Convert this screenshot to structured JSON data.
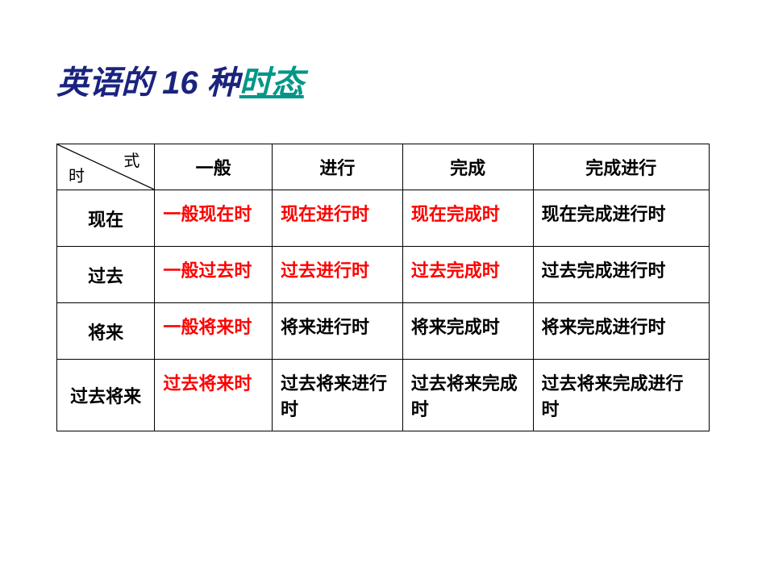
{
  "title": {
    "prefix": "英语的 16 种",
    "suffix": "时态"
  },
  "table": {
    "diagonal": {
      "top": "式",
      "bottom": "时"
    },
    "columns": [
      "一般",
      "进行",
      "完成",
      "完成进行"
    ],
    "rows": [
      {
        "header": "现在",
        "cells": [
          {
            "text": "一般现在时",
            "color": "red"
          },
          {
            "text": "现在进行时",
            "color": "red"
          },
          {
            "text": "现在完成时",
            "color": "red"
          },
          {
            "text": "现在完成进行时",
            "color": "black"
          }
        ]
      },
      {
        "header": "过去",
        "cells": [
          {
            "text": "一般过去时",
            "color": "red"
          },
          {
            "text": "过去进行时",
            "color": "red"
          },
          {
            "text": "过去完成时",
            "color": "red"
          },
          {
            "text": "过去完成进行时",
            "color": "black"
          }
        ]
      },
      {
        "header": "将来",
        "cells": [
          {
            "text": "一般将来时",
            "color": "red"
          },
          {
            "text": "将来进行时",
            "color": "black"
          },
          {
            "text": "将来完成时",
            "color": "black"
          },
          {
            "text": "将来完成进行时",
            "color": "black"
          }
        ]
      },
      {
        "header": "过去将来",
        "cells": [
          {
            "text": "过去将来时",
            "color": "red"
          },
          {
            "text": "过去将来进行时",
            "color": "black"
          },
          {
            "text": "过去将来完成时",
            "color": "black"
          },
          {
            "text": "过去将来完成进行时",
            "color": "black"
          }
        ]
      }
    ]
  },
  "colors": {
    "title_prefix": "#1a237e",
    "title_suffix": "#009688",
    "red": "#ff0000",
    "black": "#000000",
    "border": "#000000",
    "background": "#ffffff"
  }
}
